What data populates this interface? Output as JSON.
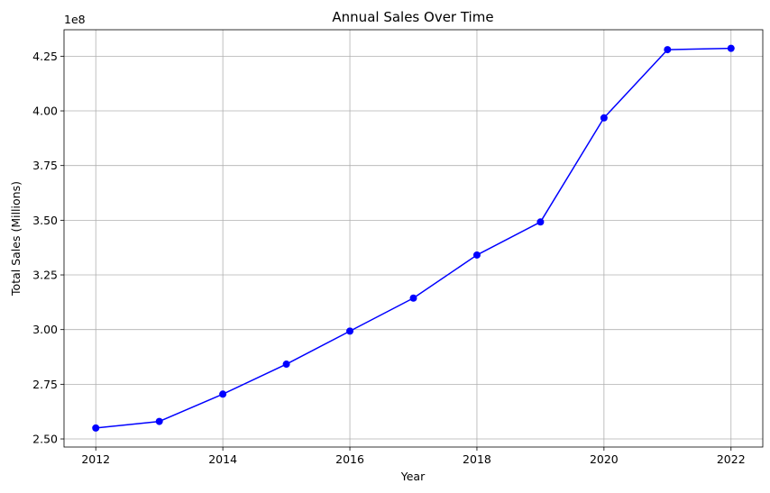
{
  "chart_data": {
    "type": "line",
    "title": "Annual Sales Over Time",
    "xlabel": "Year",
    "ylabel": "Total Sales (Millions)",
    "offset_label": "1e8",
    "x": [
      2012,
      2013,
      2014,
      2015,
      2016,
      2017,
      2018,
      2019,
      2020,
      2021,
      2022
    ],
    "series": [
      {
        "values": [
          255000000,
          258000000,
          270500000,
          284200000,
          299300000,
          314400000,
          334100000,
          349200000,
          396800000,
          428000000,
          428600000
        ],
        "color": "#0000ff",
        "marker": "circle"
      }
    ],
    "xlim": [
      2011.5,
      2022.5
    ],
    "ylim": [
      246300000,
      437100000
    ],
    "xticks": [
      2012,
      2014,
      2016,
      2018,
      2020,
      2022
    ],
    "xtick_labels": [
      "2012",
      "2014",
      "2016",
      "2018",
      "2020",
      "2022"
    ],
    "yticks": [
      250000000,
      275000000,
      300000000,
      325000000,
      350000000,
      375000000,
      400000000,
      425000000
    ],
    "ytick_labels": [
      "2.50",
      "2.75",
      "3.00",
      "3.25",
      "3.50",
      "3.75",
      "4.00",
      "4.25"
    ],
    "grid": true,
    "legend": false
  }
}
